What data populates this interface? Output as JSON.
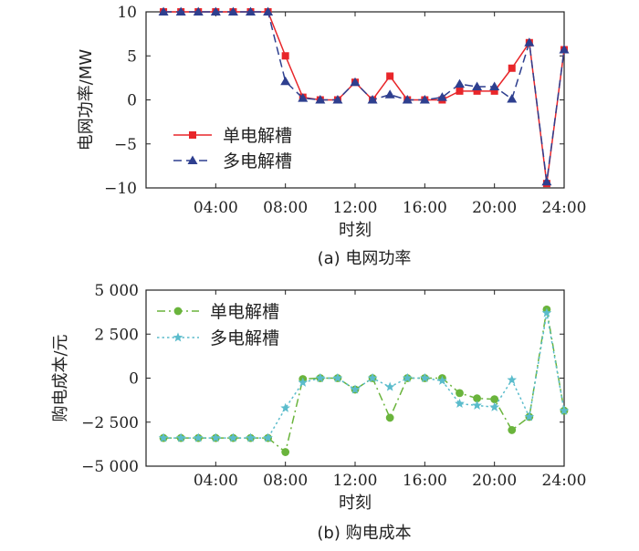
{
  "chart_data": [
    {
      "type": "line",
      "caption": "(a)  电网功率",
      "xlabel": "时刻",
      "ylabel": "电网功率/MW",
      "xlim": [
        0,
        24
      ],
      "ylim": [
        -10,
        10
      ],
      "xticks": [
        4,
        8,
        12,
        16,
        20,
        24
      ],
      "xtick_labels": [
        "04:00",
        "08:00",
        "12:00",
        "16:00",
        "20:00",
        "24:00"
      ],
      "yticks": [
        -10,
        -5,
        0,
        5,
        10
      ],
      "ytick_labels": [
        "−10",
        "−5",
        "0",
        "5",
        "10"
      ],
      "grid": false,
      "legend_position": "center-left",
      "x": [
        1,
        2,
        3,
        4,
        5,
        6,
        7,
        8,
        9,
        10,
        11,
        12,
        13,
        14,
        15,
        16,
        17,
        18,
        19,
        20,
        21,
        22,
        23,
        24
      ],
      "series": [
        {
          "name": "单电解槽",
          "color": "#e8262a",
          "marker": "square",
          "line_style": "solid",
          "values": [
            10,
            10,
            10,
            10,
            10,
            10,
            10,
            5.0,
            0.3,
            0,
            0,
            2.0,
            0,
            2.7,
            0,
            0,
            0,
            1.0,
            1.0,
            1.0,
            3.6,
            6.5,
            -9.5,
            5.7
          ]
        },
        {
          "name": "多电解槽",
          "color": "#2e3f8f",
          "marker": "triangle",
          "line_style": "dashed",
          "values": [
            10,
            10,
            10,
            10,
            10,
            10,
            10,
            2.1,
            0.2,
            0,
            0,
            2.0,
            0,
            0.6,
            0,
            0,
            0.3,
            1.8,
            1.5,
            1.5,
            0.1,
            6.5,
            -9.3,
            5.7
          ]
        }
      ]
    },
    {
      "type": "line",
      "caption": "(b)  购电成本",
      "xlabel": "时刻",
      "ylabel": "购电成本/元",
      "xlim": [
        0,
        24
      ],
      "ylim": [
        -5000,
        5000
      ],
      "xticks": [
        4,
        8,
        12,
        16,
        20,
        24
      ],
      "xtick_labels": [
        "04:00",
        "08:00",
        "12:00",
        "16:00",
        "20:00",
        "24:00"
      ],
      "yticks": [
        -5000,
        -2500,
        0,
        2500,
        5000
      ],
      "ytick_labels": [
        "−5 000",
        "−2 500",
        "0",
        "2 500",
        "5 000"
      ],
      "grid": false,
      "legend_position": "top-left",
      "x": [
        1,
        2,
        3,
        4,
        5,
        6,
        7,
        8,
        9,
        10,
        11,
        12,
        13,
        14,
        15,
        16,
        17,
        18,
        19,
        20,
        21,
        22,
        23,
        24
      ],
      "series": [
        {
          "name": "单电解槽",
          "color": "#6ab43c",
          "marker": "circle",
          "line_style": "dash-dot",
          "values": [
            -3400,
            -3400,
            -3400,
            -3400,
            -3400,
            -3400,
            -3400,
            -4200,
            -50,
            0,
            0,
            -650,
            0,
            -2250,
            0,
            0,
            0,
            -850,
            -1150,
            -1200,
            -2950,
            -2200,
            3900,
            -1850
          ]
        },
        {
          "name": "多电解槽",
          "color": "#5bbccc",
          "marker": "star",
          "line_style": "dotted",
          "values": [
            -3400,
            -3400,
            -3400,
            -3400,
            -3400,
            -3400,
            -3400,
            -1700,
            -250,
            0,
            0,
            -650,
            0,
            -500,
            0,
            0,
            -150,
            -1450,
            -1550,
            -1650,
            -100,
            -2200,
            3700,
            -1850
          ]
        }
      ]
    }
  ]
}
